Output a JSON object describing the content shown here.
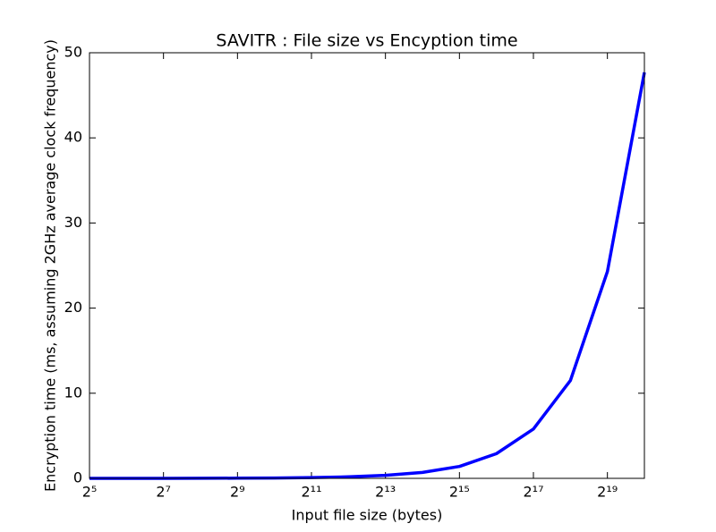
{
  "chart_data": {
    "type": "line",
    "title": "SAVITR : File size vs Encyption time",
    "xlabel": "Input file size (bytes)",
    "ylabel": "Encryption time (ms, assuming 2GHz average clock frequency)",
    "x": [
      32,
      64,
      128,
      256,
      512,
      1024,
      2048,
      4096,
      8192,
      16384,
      32768,
      65536,
      131072,
      262144,
      524288,
      1048576
    ],
    "values": [
      0.0015,
      0.003,
      0.006,
      0.011,
      0.023,
      0.045,
      0.09,
      0.18,
      0.36,
      0.7,
      1.4,
      2.9,
      5.8,
      11.5,
      24.3,
      47.7
    ],
    "color": "#0000ff",
    "xscale": "log",
    "xbase": 2,
    "xlim": [
      32,
      1048576
    ],
    "xticks": [
      {
        "value": 32,
        "label": "2⁵"
      },
      {
        "value": 128,
        "label": "2⁷"
      },
      {
        "value": 512,
        "label": "2⁹"
      },
      {
        "value": 2048,
        "label": "2¹¹"
      },
      {
        "value": 8192,
        "label": "2¹³"
      },
      {
        "value": 32768,
        "label": "2¹⁵"
      },
      {
        "value": 131072,
        "label": "2¹⁷"
      },
      {
        "value": 524288,
        "label": "2¹⁹"
      }
    ],
    "ylim": [
      0,
      50
    ],
    "yticks": [
      0,
      10,
      20,
      30,
      40,
      50
    ],
    "grid": false
  }
}
